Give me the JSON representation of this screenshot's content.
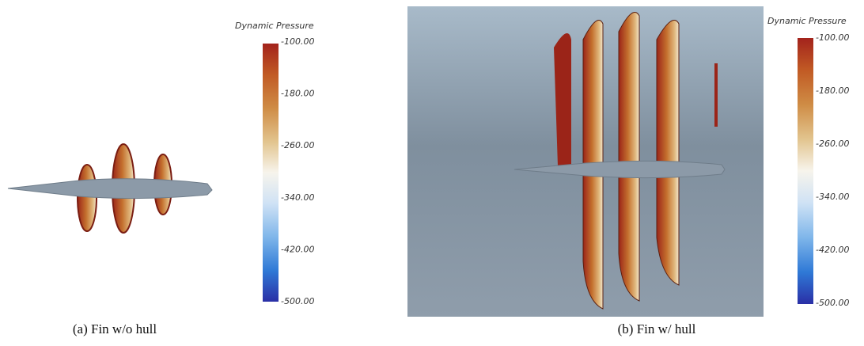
{
  "panels": [
    {
      "colorbar": {
        "title": "Dynamic Pressure",
        "ticks": [
          "-100.00",
          "-180.00",
          "-260.00",
          "-340.00",
          "-420.00",
          "-500.00"
        ]
      },
      "caption": "(a)  Fin  w/o  hull"
    },
    {
      "colorbar": {
        "title": "Dynamic Pressure",
        "ticks": [
          "-100.00",
          "-180.00",
          "-260.00",
          "-340.00",
          "-420.00",
          "-500.00"
        ]
      },
      "caption": "(b)  Fin  w/  hull"
    }
  ]
}
